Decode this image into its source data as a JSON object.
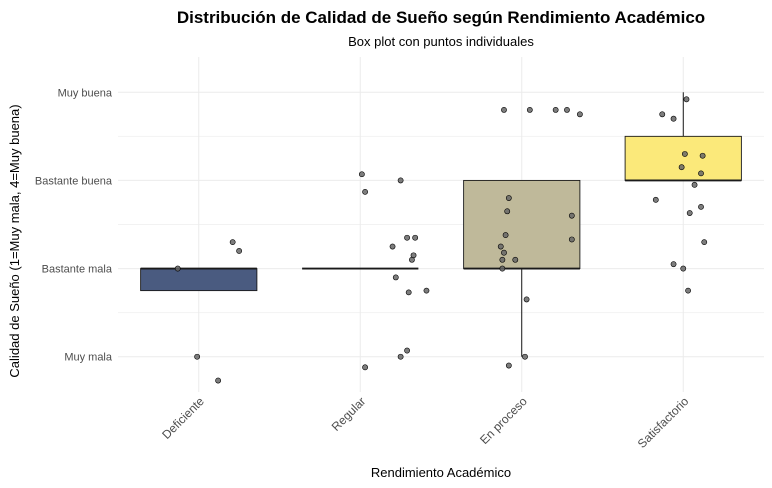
{
  "chart_data": {
    "type": "box",
    "title": "Distribución de Calidad de Sueño según Rendimiento Académico",
    "subtitle": "Box plot con puntos individuales",
    "xlabel": "Rendimiento Académico",
    "ylabel": "Calidad de Sueño (1=Muy mala, 4=Muy buena)",
    "ylim": [
      0.6,
      4.4
    ],
    "y_ticks": [
      {
        "value": 1,
        "label": "Muy mala"
      },
      {
        "value": 2,
        "label": "Bastante mala"
      },
      {
        "value": 3,
        "label": "Bastante buena"
      },
      {
        "value": 4,
        "label": "Muy buena"
      }
    ],
    "grid": true,
    "categories": [
      "Deficiente",
      "Regular",
      "En proceso",
      "Satisfactorio"
    ],
    "boxes": [
      {
        "category": "Deficiente",
        "q1": 1.75,
        "median": 2,
        "q3": 2,
        "whisker_low": 1.75,
        "whisker_high": 2,
        "fill": "#4a5b80"
      },
      {
        "category": "Regular",
        "q1": 2,
        "median": 2,
        "q3": 2,
        "whisker_low": 2,
        "whisker_high": 2,
        "fill": "#6b7590"
      },
      {
        "category": "En proceso",
        "q1": 2,
        "median": 2,
        "q3": 3,
        "whisker_low": 1,
        "whisker_high": 3,
        "fill": "#bfb99a"
      },
      {
        "category": "Satisfactorio",
        "q1": 3,
        "median": 3,
        "q3": 3.5,
        "whisker_low": 3,
        "whisker_high": 4,
        "fill": "#fbe97a"
      }
    ],
    "points": [
      {
        "category": "Deficiente",
        "jitter": -0.13,
        "y": 2.0
      },
      {
        "category": "Deficiente",
        "jitter": 0.21,
        "y": 2.3
      },
      {
        "category": "Deficiente",
        "jitter": 0.25,
        "y": 2.2
      },
      {
        "category": "Deficiente",
        "jitter": -0.01,
        "y": 1.0
      },
      {
        "category": "Deficiente",
        "jitter": 0.12,
        "y": 0.73
      },
      {
        "category": "Regular",
        "jitter": 0.01,
        "y": 3.07
      },
      {
        "category": "Regular",
        "jitter": 0.03,
        "y": 2.87
      },
      {
        "category": "Regular",
        "jitter": 0.25,
        "y": 3.0
      },
      {
        "category": "Regular",
        "jitter": 0.29,
        "y": 2.35
      },
      {
        "category": "Regular",
        "jitter": 0.34,
        "y": 2.35
      },
      {
        "category": "Regular",
        "jitter": 0.2,
        "y": 2.25
      },
      {
        "category": "Regular",
        "jitter": 0.33,
        "y": 2.15
      },
      {
        "category": "Regular",
        "jitter": 0.32,
        "y": 2.1
      },
      {
        "category": "Regular",
        "jitter": 0.22,
        "y": 1.9
      },
      {
        "category": "Regular",
        "jitter": 0.3,
        "y": 1.73
      },
      {
        "category": "Regular",
        "jitter": 0.41,
        "y": 1.75
      },
      {
        "category": "Regular",
        "jitter": 0.29,
        "y": 1.07
      },
      {
        "category": "Regular",
        "jitter": 0.25,
        "y": 1.0
      },
      {
        "category": "Regular",
        "jitter": 0.03,
        "y": 0.88
      },
      {
        "category": "En proceso",
        "jitter": 0.28,
        "y": 3.8
      },
      {
        "category": "En proceso",
        "jitter": -0.11,
        "y": 3.8
      },
      {
        "category": "En proceso",
        "jitter": 0.05,
        "y": 3.8
      },
      {
        "category": "En proceso",
        "jitter": 0.21,
        "y": 3.8
      },
      {
        "category": "En proceso",
        "jitter": 0.36,
        "y": 3.75
      },
      {
        "category": "En proceso",
        "jitter": -0.08,
        "y": 2.8
      },
      {
        "category": "En proceso",
        "jitter": -0.09,
        "y": 2.65
      },
      {
        "category": "En proceso",
        "jitter": 0.31,
        "y": 2.6
      },
      {
        "category": "En proceso",
        "jitter": -0.1,
        "y": 2.38
      },
      {
        "category": "En proceso",
        "jitter": 0.31,
        "y": 2.33
      },
      {
        "category": "En proceso",
        "jitter": -0.13,
        "y": 2.25
      },
      {
        "category": "En proceso",
        "jitter": -0.11,
        "y": 2.18
      },
      {
        "category": "En proceso",
        "jitter": -0.12,
        "y": 2.1
      },
      {
        "category": "En proceso",
        "jitter": -0.04,
        "y": 2.1
      },
      {
        "category": "En proceso",
        "jitter": -0.12,
        "y": 2.0
      },
      {
        "category": "En proceso",
        "jitter": 0.03,
        "y": 1.65
      },
      {
        "category": "En proceso",
        "jitter": 0.02,
        "y": 1.0
      },
      {
        "category": "En proceso",
        "jitter": -0.08,
        "y": 0.9
      },
      {
        "category": "Satisfactorio",
        "jitter": 0.02,
        "y": 3.92
      },
      {
        "category": "Satisfactorio",
        "jitter": -0.13,
        "y": 3.75
      },
      {
        "category": "Satisfactorio",
        "jitter": -0.06,
        "y": 3.7
      },
      {
        "category": "Satisfactorio",
        "jitter": 0.01,
        "y": 3.3
      },
      {
        "category": "Satisfactorio",
        "jitter": 0.12,
        "y": 3.28
      },
      {
        "category": "Satisfactorio",
        "jitter": -0.01,
        "y": 3.15
      },
      {
        "category": "Satisfactorio",
        "jitter": 0.11,
        "y": 3.08
      },
      {
        "category": "Satisfactorio",
        "jitter": 0.07,
        "y": 2.95
      },
      {
        "category": "Satisfactorio",
        "jitter": -0.17,
        "y": 2.78
      },
      {
        "category": "Satisfactorio",
        "jitter": 0.11,
        "y": 2.7
      },
      {
        "category": "Satisfactorio",
        "jitter": 0.04,
        "y": 2.63
      },
      {
        "category": "Satisfactorio",
        "jitter": 0.13,
        "y": 2.3
      },
      {
        "category": "Satisfactorio",
        "jitter": -0.06,
        "y": 2.05
      },
      {
        "category": "Satisfactorio",
        "jitter": 0.0,
        "y": 2.0
      },
      {
        "category": "Satisfactorio",
        "jitter": 0.03,
        "y": 1.75
      }
    ]
  }
}
